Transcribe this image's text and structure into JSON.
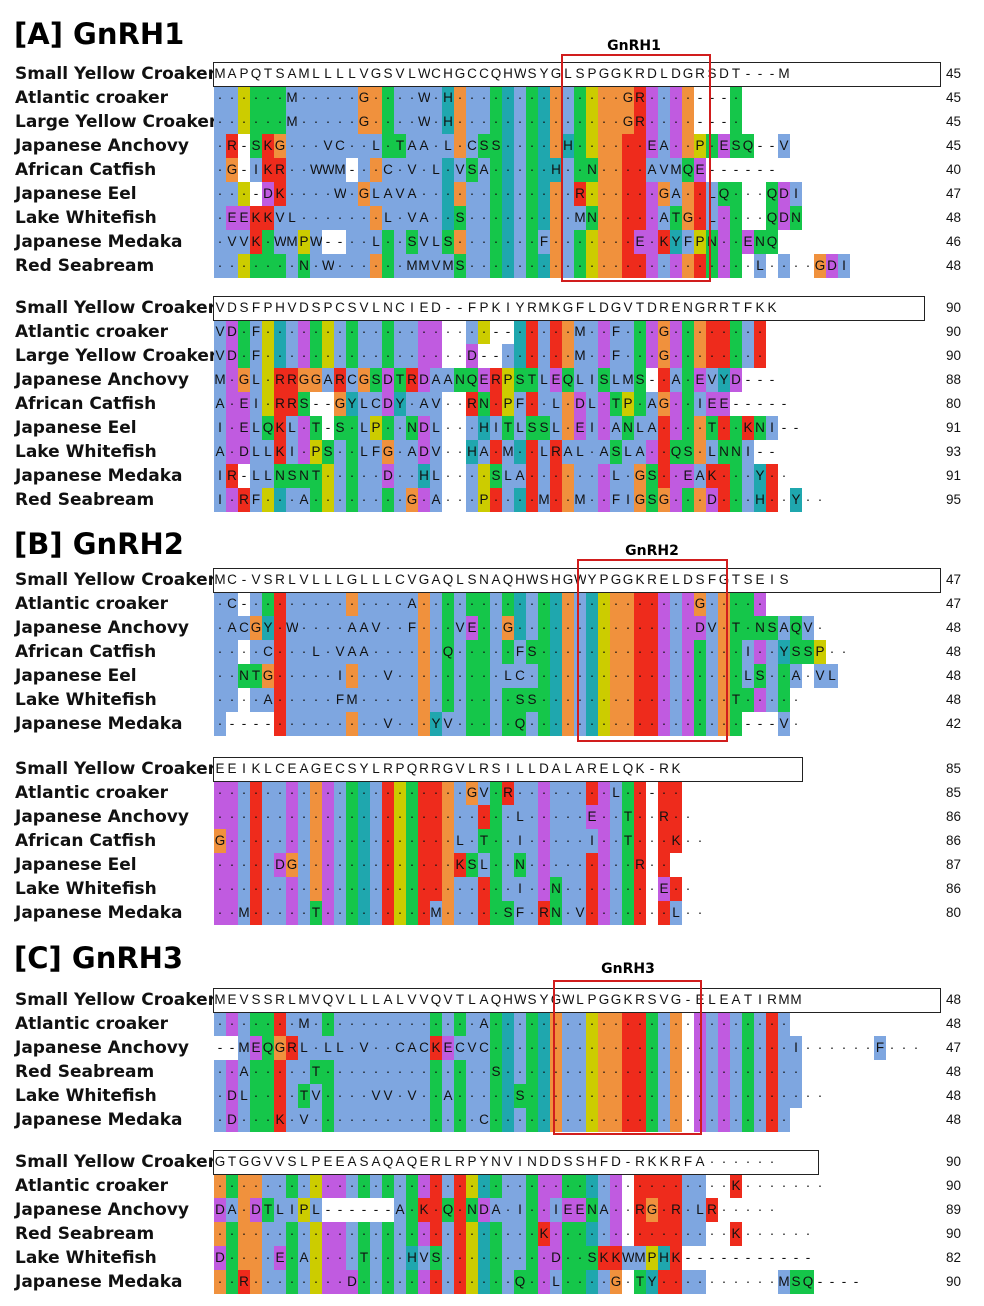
{
  "colors": {
    "A": "#7ea6e0",
    "V": "#7ea6e0",
    "L": "#7ea6e0",
    "I": "#7ea6e0",
    "M": "#7ea6e0",
    "F": "#7ea6e0",
    "W": "#7ea6e0",
    "C": "#7ea6e0",
    "S": "#15c64a",
    "T": "#15c64a",
    "N": "#15c64a",
    "Q": "#15c64a",
    "D": "#c05be0",
    "E": "#c05be0",
    "K": "#ee2b1c",
    "R": "#ee2b1c",
    "G": "#f0913d",
    "P": "#cccc00",
    "H": "#1fa7ae",
    "Y": "#1fa7ae",
    "gap": "#ffffff",
    "motif_box": "#d11d1d"
  },
  "panels": [
    {
      "title": "[A] GnRH1",
      "motif_label": "GnRH1",
      "blocks": [
        {
          "rows": [
            {
              "species": "Small Yellow Croaker",
              "seq": "MAPQTSAMLLLLVGSVLWCHGCCQHWSYGLSPGGKRDLDGRSDT---M",
              "num": "45"
            },
            {
              "species": "Atlantic croaker",
              "seq": "......M.....G....W.H..............GR....---.",
              "num": "45"
            },
            {
              "species": "Large Yellow Croaker",
              "seq": "......M.....G....W.H..............GR....---.",
              "num": "45"
            },
            {
              "species": "Japanese Anchovy",
              "seq": ".R-SKG...VC..L.TAA.L.CSS.....H......EA..P.ESQ--V",
              "num": "45"
            },
            {
              "species": "African Catfish",
              "seq": ".G-IKR..WWM-..C.V.L.VSA.....H..N....AVMQE------",
              "num": "40"
            },
            {
              "species": "Japanese Eel",
              "seq": "...-DK....W.GLAVA.............R......GA..LQ...QDI",
              "num": "47"
            },
            {
              "species": "Lake Whitefish",
              "seq": ".EEKKVL.......L.VA..S.........MN.....ATG.L....QDN",
              "num": "48"
            },
            {
              "species": "Japanese Medaka",
              "seq": ".VVK.WMPW--..L..SVLS.......F.......E.KYFPN..ENQ",
              "num": "46"
            },
            {
              "species": "Red Seabream",
              "seq": ".......N.W......MMVMS........................L....GDI",
              "num": "48"
            }
          ]
        },
        {
          "rows": [
            {
              "species": "Small Yellow Croaker",
              "seq": "VDSFPHVDSPCSVLNCIED--FPKIYRMKGFLDGVTDRENGRRTFKK",
              "num": "90"
            },
            {
              "species": "Atlantic croaker",
              "seq": "VD.F...................--.....M..F...G........",
              "num": "90"
            },
            {
              "species": "Large Yellow Croaker",
              "seq": "VD.F.................D--......M..F...G........",
              "num": "90"
            },
            {
              "species": "Japanese Anchovy",
              "seq": "M.GL.RRGGARCGSDTRDAANQERPSTLEQLISLMS-.A.EVYD---",
              "num": "88"
            },
            {
              "species": "African Catfish",
              "seq": "A.EI.RRS--GYLCDY.AV..RN.PF..L.DL.TP.AG..IEE-----",
              "num": "80"
            },
            {
              "species": "Japanese Eel",
              "seq": "I.ELQKL.T-S.LP..NDL...HITLSSL.EI.ANLA....T..KNI--",
              "num": "91"
            },
            {
              "species": "Lake Whitefish",
              "seq": "A.DLLKI.PS..LFG.ADV..HA.M..LRAL.ASLA..QS.LNNI--",
              "num": "93"
            },
            {
              "species": "Japanese Medaka",
              "seq": "IR-LLNSNT.....D..HL....SLA.......L.GS..EAK...Y..",
              "num": "91"
            },
            {
              "species": "Red Seabream",
              "seq": "I.RF...A........G.A...P....M..M..FIGSG...D...H..Y..",
              "num": "95"
            }
          ]
        }
      ]
    },
    {
      "title": "[B] GnRH2",
      "motif_label": "GnRH2",
      "blocks": [
        {
          "rows": [
            {
              "species": "Small Yellow Croaker",
              "seq": "MC-VSRLVLLLGLLLCVGAQLSNAQHWSHGWYPGGKRELDSFGTSEIS",
              "num": "47"
            },
            {
              "species": "Atlantic croaker",
              "seq": ".C-.............A.......................G.....",
              "num": "47"
            },
            {
              "species": "Japanese Anchovy",
              "seq": ".ACGY.W....AAV..F...VE..G...............DV.T.NSAQV.",
              "num": "48"
            },
            {
              "species": "African Catfish",
              "seq": "....C...L.VAA......Q.....FS.................I..YSSP..",
              "num": "48"
            },
            {
              "species": "Japanese Eel",
              "seq": "..NTG.....I...V.........LC..................LS..A.VL",
              "num": "48"
            },
            {
              "species": "Lake Whitefish",
              "seq": "....A.....FM.............SS................T.....",
              "num": "48"
            },
            {
              "species": "Japanese Medaka",
              "seq": ".----.........V...YV.....Q..................---V.",
              "num": "42"
            }
          ]
        },
        {
          "rows": [
            {
              "species": "Small Yellow Croaker",
              "seq": "EEIKLCEAGECSYLRPQRRGVLRSILLDALARELQK-RK",
              "num": "85"
            },
            {
              "species": "Atlantic croaker",
              "seq": ".....................GV.R........L..-..",
              "num": "85"
            },
            {
              "species": "Japanese Anchovy",
              "seq": ".........................L.....E..T..R..",
              "num": "86"
            },
            {
              "species": "African Catfish",
              "seq": "G...................L.T..I.....I..T...K..",
              "num": "86"
            },
            {
              "species": "Japanese Eel",
              "seq": ".....DG.............KSL..N.........R..",
              "num": "87"
            },
            {
              "species": "Lake Whitefish",
              "seq": ".........................I..N........E..",
              "num": "86"
            },
            {
              "species": "Japanese Medaka",
              "seq": "..M.....T.........M.....SF.RN.V.......L..",
              "num": "80"
            }
          ]
        }
      ]
    },
    {
      "title": "[C] GnRH3",
      "motif_label": "GnRH3",
      "blocks": [
        {
          "rows": [
            {
              "species": "Small Yellow Croaker",
              "seq": "MEVSSRLMVQVLLLALVVQVTLAQHWSYGWLPGGKRSVG-ELEATIRMM",
              "num": "48"
            },
            {
              "species": "Atlantic croaker",
              "seq": ".......M..............A.........................",
              "num": "48"
            },
            {
              "species": "Japanese Anchovy",
              "seq": "--MEQGRL.LL.V..CACKECVC.........................I......F...",
              "num": "47"
            },
            {
              "species": "Red Seabream",
              "seq": "..A.....T..............S.........................",
              "num": "48"
            },
            {
              "species": "Lake Whitefish",
              "seq": ".DL....TV....VV.V..A.....S.........................",
              "num": "48"
            },
            {
              "species": "Japanese Medaka",
              "seq": ".D...K.V..............C.........................",
              "num": "48"
            }
          ]
        },
        {
          "rows": [
            {
              "species": "Small Yellow Croaker",
              "seq": "GTGGVVSLPEEASAQAQERLRPYNVINDDSSHFD-RKKRFA......",
              "num": "90"
            },
            {
              "species": "Atlantic croaker",
              "seq": "...........................................K.......",
              "num": "90"
            },
            {
              "species": "Japanese Anchovy",
              "seq": "DA.DTLIPL------A.K.Q.NDA.I..IEENA..RG.R.LR.....",
              "num": "89"
            },
            {
              "species": "Red Seabream",
              "seq": "...........................K...............K......",
              "num": "90"
            },
            {
              "species": "Lake Whitefish",
              "seq": "D....E.A....T...HVS.........D..SKKWMPHK-----------",
              "num": "82"
            },
            {
              "species": "Japanese Medaka",
              "seq": "..R........D.............Q..L....G.TY..........MSQ----",
              "num": "90"
            }
          ]
        }
      ]
    }
  ]
}
